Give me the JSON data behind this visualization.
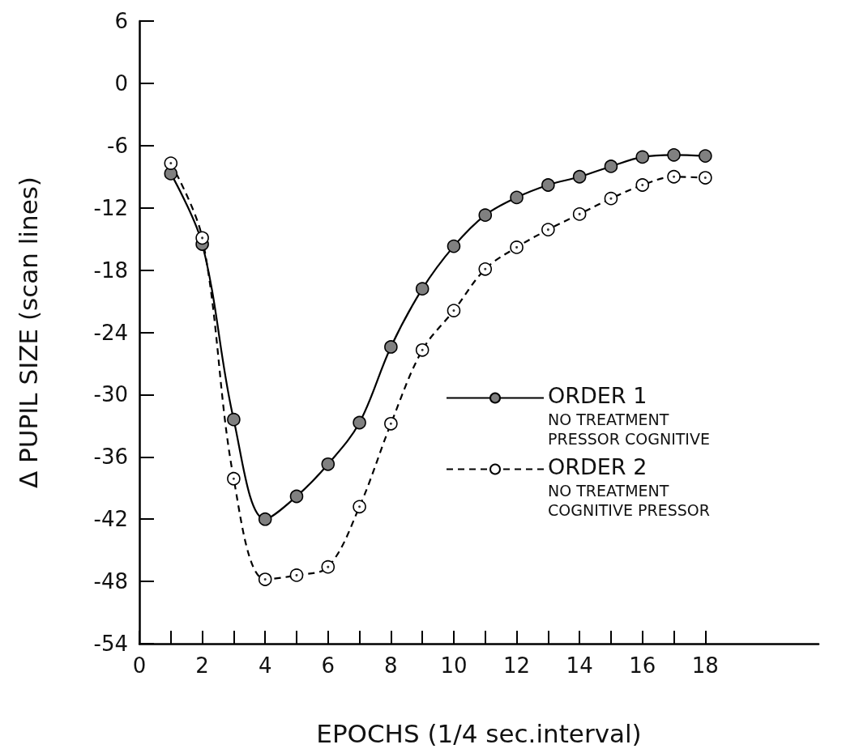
{
  "chart_data": {
    "type": "line",
    "xlabel": "EPOCHS (1/4 sec.interval)",
    "ylabel": "Δ PUPIL SIZE (scan lines)",
    "x": [
      1,
      2,
      3,
      4,
      5,
      6,
      7,
      8,
      9,
      10,
      11,
      12,
      13,
      14,
      15,
      16,
      17,
      18
    ],
    "series": [
      {
        "name": "ORDER 1\nNO TREATMENT\nPRESSOR COGNITIVE",
        "color": "#808080",
        "line_style": "solid",
        "values": [
          -8.7,
          -15.5,
          -32.4,
          -42.0,
          -39.8,
          -36.7,
          -32.7,
          -25.4,
          -19.8,
          -15.7,
          -12.7,
          -11.0,
          -9.8,
          -9.0,
          -8.0,
          -7.1,
          -6.9,
          -7.0
        ]
      },
      {
        "name": "ORDER 2\nNO TREATMENT\nCOGNITIVE PRESSOR",
        "color": "#ffffff",
        "line_style": "dashed",
        "values": [
          -7.7,
          -14.9,
          -38.1,
          -47.8,
          -47.4,
          -46.6,
          -40.8,
          -32.8,
          -25.7,
          -21.9,
          -17.9,
          -15.8,
          -14.1,
          -12.6,
          -11.1,
          -9.8,
          -9.0,
          -9.1
        ]
      }
    ],
    "xlim": [
      0,
      21.6
    ],
    "xticks": [
      0,
      {
        "value": 1,
        "label": null
      },
      2,
      {
        "value": 3,
        "label": null
      },
      4,
      {
        "value": 5,
        "label": null
      },
      6,
      {
        "value": 7,
        "label": null
      },
      8,
      {
        "value": 9,
        "label": null
      },
      10,
      {
        "value": 11,
        "label": null
      },
      12,
      {
        "value": 13,
        "label": null
      },
      14,
      {
        "value": 15,
        "label": null
      },
      16,
      {
        "value": 17,
        "label": null
      },
      18
    ],
    "ylim": [
      -54,
      6
    ],
    "yticks": [
      -54,
      -48,
      -42,
      -36,
      -30,
      -24,
      -18,
      -12,
      -6,
      0,
      6
    ],
    "grid": false,
    "legend": "right",
    "marker": "circle"
  }
}
